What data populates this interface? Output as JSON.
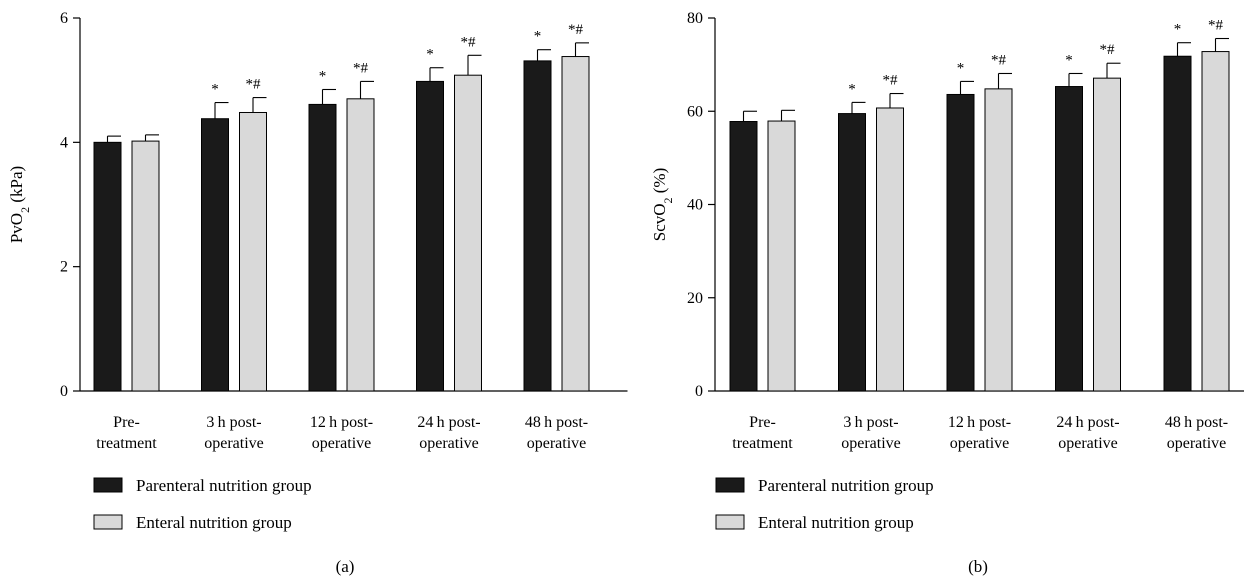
{
  "colors": {
    "parenteral": "#1a1a1a",
    "enteral": "#d9d9d9",
    "axis": "#000000"
  },
  "legend": {
    "items": [
      "Parenteral nutrition group",
      "Enteral nutrition group"
    ]
  },
  "chart_data": [
    {
      "type": "bar",
      "panel_label": "(a)",
      "ylabel_main": "PvO",
      "ylabel_sub": "2",
      "ylabel_tail": " (kPa)",
      "ylim": [
        0,
        6
      ],
      "yticks": [
        "0",
        "2",
        "4",
        "6"
      ],
      "categories": [
        [
          "Pre-",
          "treatment"
        ],
        [
          "3 h post-",
          "operative"
        ],
        [
          "12 h post-",
          "operative"
        ],
        [
          "24 h post-",
          "operative"
        ],
        [
          "48 h post-",
          "operative"
        ]
      ],
      "series": [
        {
          "name": "Parenteral nutrition group",
          "values": [
            4.0,
            4.38,
            4.61,
            4.98,
            5.31
          ],
          "errors": [
            0.1,
            0.26,
            0.24,
            0.22,
            0.18
          ],
          "annotations": [
            "",
            "*",
            "*",
            "*",
            "*"
          ]
        },
        {
          "name": "Enteral nutrition group",
          "values": [
            4.02,
            4.48,
            4.7,
            5.08,
            5.38
          ],
          "errors": [
            0.1,
            0.24,
            0.28,
            0.32,
            0.22
          ],
          "annotations": [
            "",
            "*#",
            "*#",
            "*#",
            "*#"
          ]
        }
      ]
    },
    {
      "type": "bar",
      "panel_label": "(b)",
      "ylabel_main": "ScvO",
      "ylabel_sub": "2",
      "ylabel_tail": " (%)",
      "ylim": [
        0,
        80
      ],
      "yticks": [
        "0",
        "20",
        "40",
        "60",
        "80"
      ],
      "categories": [
        [
          "Pre-",
          "treatment"
        ],
        [
          "3 h post-",
          "operative"
        ],
        [
          "12 h post-",
          "operative"
        ],
        [
          "24 h post-",
          "operative"
        ],
        [
          "48 h post-",
          "operative"
        ]
      ],
      "series": [
        {
          "name": "Parenteral nutrition group",
          "values": [
            57.8,
            59.5,
            63.6,
            65.3,
            71.8
          ],
          "errors": [
            2.2,
            2.4,
            2.8,
            2.8,
            2.9
          ],
          "annotations": [
            "",
            "*",
            "*",
            "*",
            "*"
          ]
        },
        {
          "name": "Enteral nutrition group",
          "values": [
            57.9,
            60.7,
            64.8,
            67.1,
            72.8
          ],
          "errors": [
            2.3,
            3.1,
            3.3,
            3.2,
            2.8
          ],
          "annotations": [
            "",
            "*#",
            "*#",
            "*#",
            "*#"
          ]
        }
      ]
    }
  ]
}
